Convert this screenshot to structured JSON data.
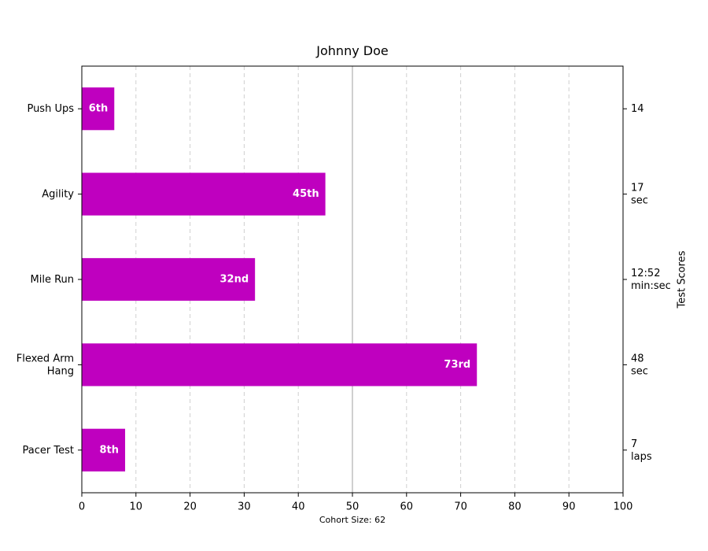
{
  "chart_data": {
    "type": "bar",
    "orientation": "horizontal",
    "title": "Johnny Doe",
    "xlabel": "Cohort Size: 62",
    "ylabel_right": "Test Scores",
    "xlim": [
      0,
      100
    ],
    "xticks": [
      0,
      10,
      20,
      30,
      40,
      50,
      60,
      70,
      80,
      90,
      100
    ],
    "grid": "x-dashed",
    "median_line": 50,
    "categories": [
      "Pacer Test",
      "Flexed Arm\nHang",
      "Mile Run",
      "Agility",
      "Push Ups"
    ],
    "values": [
      8,
      73,
      32,
      45,
      6
    ],
    "bar_labels": [
      "8th",
      "73rd",
      "32nd",
      "45th",
      "6th"
    ],
    "scores": [
      "7\nlaps",
      "48\nsec",
      "12:52\nmin:sec",
      "17\nsec",
      "14"
    ],
    "colors": {
      "bar": "#bf00bf",
      "grid": "#d0d0d0",
      "median": "#bfbfbf"
    }
  }
}
